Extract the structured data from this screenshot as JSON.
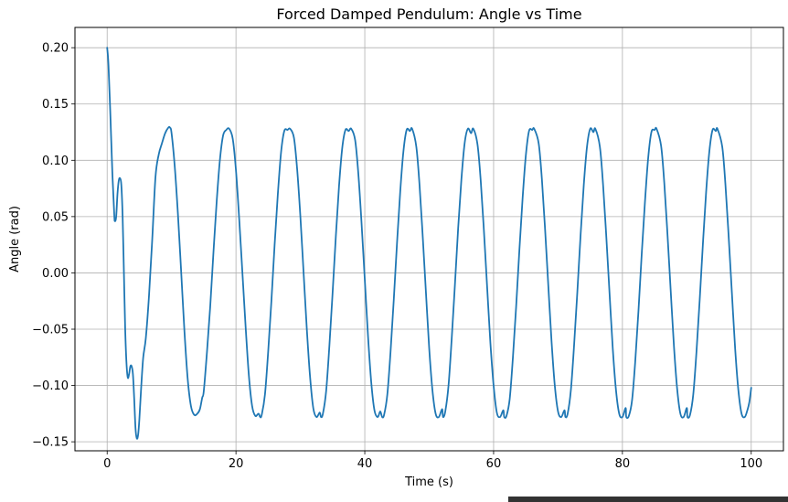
{
  "chart_data": {
    "type": "line",
    "title": "Forced Damped Pendulum: Angle vs Time",
    "xlabel": "Time (s)",
    "ylabel": "Angle (rad)",
    "xlim": [
      -5,
      105
    ],
    "ylim": [
      -0.158,
      0.218
    ],
    "xticks": [
      0,
      20,
      40,
      60,
      80,
      100
    ],
    "xtick_labels": [
      "0",
      "20",
      "40",
      "60",
      "80",
      "100"
    ],
    "yticks": [
      -0.15,
      -0.1,
      -0.05,
      0.0,
      0.05,
      0.1,
      0.15,
      0.2
    ],
    "ytick_labels": [
      "−0.15",
      "−0.10",
      "−0.05",
      "0.00",
      "0.05",
      "0.10",
      "0.15",
      "0.20"
    ],
    "grid": true,
    "line_color": "#1f77b4",
    "series": [
      {
        "x": [
          0,
          0.2,
          0.5,
          0.8,
          1.1,
          1.2,
          1.4,
          1.6,
          1.8,
          2.0,
          2.2,
          2.4,
          2.6,
          2.8,
          3.0,
          3.2,
          3.4,
          3.6,
          3.8,
          4.0,
          4.2,
          4.4,
          4.6,
          4.8,
          5.0,
          5.3,
          5.6,
          6.0,
          6.5,
          7.0,
          7.5,
          8.0,
          8.5,
          9.0,
          9.5,
          9.75,
          10.0,
          10.5,
          11.0,
          11.5,
          12.0,
          12.5,
          13.0,
          13.5,
          14.0,
          14.4,
          14.75,
          15.0,
          15.5,
          16.0,
          16.5,
          17.0,
          17.5,
          18.0,
          18.5,
          18.95,
          19.5,
          20.0,
          20.5,
          21.0,
          21.5,
          22.0,
          22.5,
          23.0,
          23.5,
          23.75,
          24.0,
          24.5,
          25.0,
          25.5,
          26.0,
          26.5,
          27.0,
          27.5,
          28.0,
          28.4,
          29.0,
          29.5,
          30.0,
          30.5,
          31.0,
          31.5,
          32.0,
          32.5,
          33.0,
          33.2,
          33.5,
          34.0,
          34.5,
          35.0,
          35.5,
          36.0,
          36.5,
          37.0,
          37.5,
          37.9,
          38.5,
          39.0,
          39.5,
          40.0,
          40.5,
          41.0,
          41.5,
          42.0,
          42.4,
          42.7,
          43.0,
          43.5,
          44.0,
          44.5,
          45.0,
          45.5,
          46.0,
          46.5,
          47.0,
          47.35,
          48.0,
          48.5,
          49.0,
          49.5,
          50.0,
          50.5,
          51.0,
          51.5,
          52.0,
          52.15,
          52.5,
          53.0,
          53.5,
          54.0,
          54.5,
          55.0,
          55.5,
          56.0,
          56.5,
          56.85,
          57.5,
          58.0,
          58.5,
          59.0,
          59.5,
          60.0,
          60.5,
          61.0,
          61.5,
          61.65,
          62.0,
          62.5,
          63.0,
          63.5,
          64.0,
          64.5,
          65.0,
          65.5,
          66.0,
          66.3,
          67.0,
          67.5,
          68.0,
          68.5,
          69.0,
          69.5,
          70.0,
          70.5,
          71.0,
          71.15,
          71.5,
          72.0,
          72.5,
          73.0,
          73.5,
          74.0,
          74.5,
          75.0,
          75.5,
          75.8,
          76.5,
          77.0,
          77.5,
          78.0,
          78.5,
          79.0,
          79.5,
          80.0,
          80.5,
          80.6,
          81.0,
          81.5,
          82.0,
          82.5,
          83.0,
          83.5,
          84.0,
          84.5,
          85.0,
          85.3,
          86.0,
          86.5,
          87.0,
          87.5,
          88.0,
          88.5,
          89.0,
          89.5,
          90.0,
          90.1,
          90.5,
          91.0,
          91.5,
          92.0,
          92.5,
          93.0,
          93.5,
          94.0,
          94.5,
          94.75,
          95.5,
          96.0,
          96.5,
          97.0,
          97.5,
          98.0,
          98.5,
          99.0,
          99.4,
          99.7,
          100.0
        ],
        "y": [
          0.2,
          0.185,
          0.14,
          0.09,
          0.052,
          0.046,
          0.05,
          0.07,
          0.082,
          0.084,
          0.078,
          0.05,
          0.0,
          -0.05,
          -0.08,
          -0.093,
          -0.09,
          -0.083,
          -0.083,
          -0.09,
          -0.112,
          -0.138,
          -0.147,
          -0.144,
          -0.13,
          -0.1,
          -0.075,
          -0.058,
          -0.02,
          0.03,
          0.085,
          0.105,
          0.115,
          0.124,
          0.129,
          0.129,
          0.124,
          0.094,
          0.051,
          0.0,
          -0.052,
          -0.094,
          -0.118,
          -0.126,
          -0.125,
          -0.121,
          -0.111,
          -0.105,
          -0.07,
          -0.03,
          0.018,
          0.063,
          0.1,
          0.122,
          0.127,
          0.128,
          0.119,
          0.091,
          0.048,
          0.0,
          -0.048,
          -0.091,
          -0.118,
          -0.127,
          -0.125,
          -0.128,
          -0.126,
          -0.108,
          -0.07,
          -0.025,
          0.025,
          0.07,
          0.107,
          0.126,
          0.127,
          0.128,
          0.12,
          0.092,
          0.05,
          0.0,
          -0.05,
          -0.092,
          -0.12,
          -0.128,
          -0.124,
          -0.128,
          -0.125,
          -0.105,
          -0.065,
          -0.018,
          0.032,
          0.077,
          0.111,
          0.127,
          0.126,
          0.128,
          0.118,
          0.088,
          0.044,
          -0.006,
          -0.056,
          -0.097,
          -0.122,
          -0.128,
          -0.123,
          -0.128,
          -0.126,
          -0.108,
          -0.07,
          -0.024,
          0.026,
          0.072,
          0.108,
          0.127,
          0.126,
          0.128,
          0.112,
          0.078,
          0.032,
          -0.018,
          -0.067,
          -0.104,
          -0.125,
          -0.128,
          -0.121,
          -0.128,
          -0.123,
          -0.1,
          -0.058,
          -0.01,
          0.04,
          0.083,
          0.115,
          0.128,
          0.124,
          0.128,
          0.114,
          0.082,
          0.037,
          -0.013,
          -0.062,
          -0.1,
          -0.124,
          -0.128,
          -0.122,
          -0.128,
          -0.127,
          -0.112,
          -0.075,
          -0.03,
          0.02,
          0.066,
          0.104,
          0.126,
          0.127,
          0.128,
          0.115,
          0.083,
          0.038,
          -0.012,
          -0.061,
          -0.1,
          -0.123,
          -0.128,
          -0.122,
          -0.128,
          -0.125,
          -0.104,
          -0.064,
          -0.017,
          0.033,
          0.078,
          0.112,
          0.128,
          0.125,
          0.128,
          0.112,
          0.078,
          0.032,
          -0.018,
          -0.067,
          -0.104,
          -0.125,
          -0.128,
          -0.12,
          -0.128,
          -0.127,
          -0.113,
          -0.078,
          -0.033,
          0.017,
          0.063,
          0.102,
          0.125,
          0.127,
          0.128,
          0.113,
          0.08,
          0.034,
          -0.016,
          -0.065,
          -0.103,
          -0.125,
          -0.128,
          -0.12,
          -0.128,
          -0.126,
          -0.108,
          -0.07,
          -0.024,
          0.026,
          0.072,
          0.108,
          0.127,
          0.126,
          0.128,
          0.112,
          0.078,
          0.032,
          -0.018,
          -0.067,
          -0.104,
          -0.125,
          -0.128,
          -0.122,
          -0.115,
          -0.102
        ]
      }
    ]
  }
}
